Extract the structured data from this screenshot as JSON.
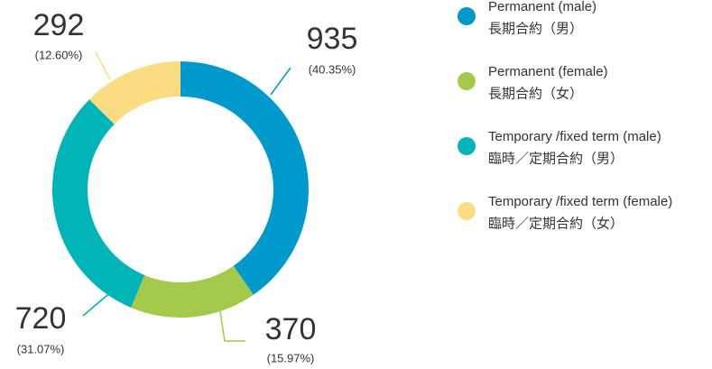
{
  "chart_data": {
    "type": "donut",
    "categories": [
      "Permanent (male)",
      "Permanent (female)",
      "Temporary /fixed term (male)",
      "Temporary /fixed term (female)"
    ],
    "categories_zh": [
      "長期合約（男）",
      "長期合約（女）",
      "臨時／定期合約（男）",
      "臨時／定期合約（女）"
    ],
    "values": [
      935,
      370,
      720,
      292
    ],
    "percent_labels": [
      "(40.35%)",
      "(15.97%)",
      "(31.07%)",
      "(12.60%)"
    ],
    "colors": [
      "#0099cc",
      "#a5c94a",
      "#00b4b8",
      "#fcdc82"
    ]
  }
}
